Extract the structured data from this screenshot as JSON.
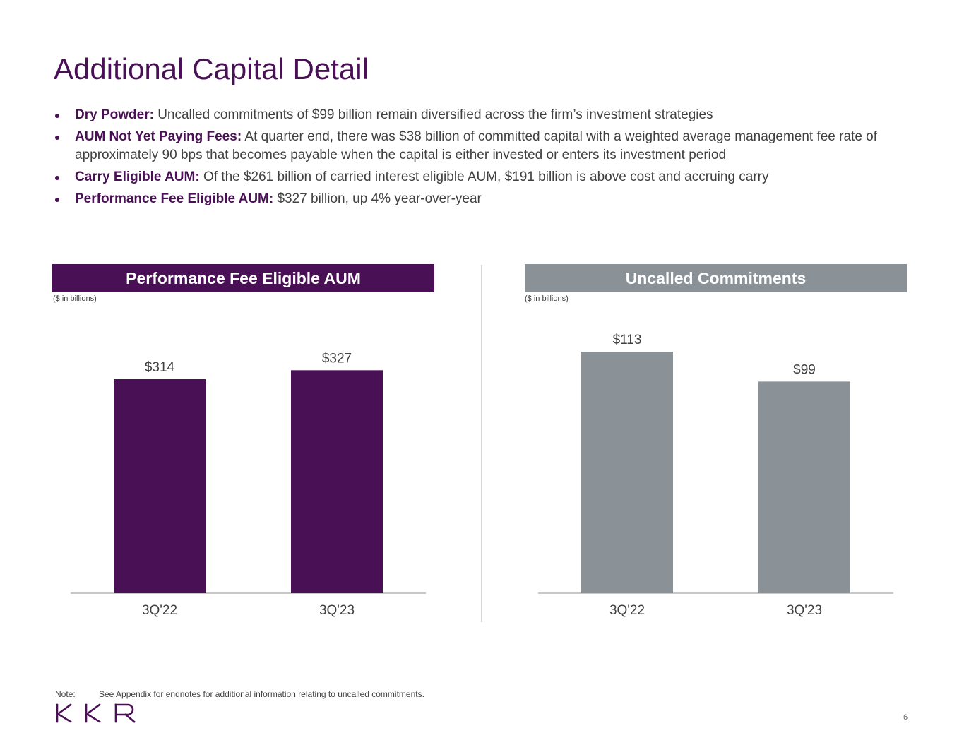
{
  "title": "Additional Capital Detail",
  "bullets": [
    {
      "label": "Dry Powder:",
      "text": "Uncalled commitments of $99 billion remain diversified across the firm’s investment strategies"
    },
    {
      "label": "AUM Not Yet Paying Fees:",
      "text": "At quarter end, there was $38 billion of committed capital with a weighted average management fee rate of approximately 90 bps that becomes payable when the capital is either invested or enters its investment period"
    },
    {
      "label": "Carry Eligible AUM:",
      "text": "Of the $261 billion of carried interest eligible AUM, $191 billion is above cost and accruing carry"
    },
    {
      "label": "Performance Fee Eligible AUM:",
      "text": "$327 billion, up 4% year-over-year"
    }
  ],
  "colors": {
    "purple": "#4a1055",
    "gray": "#8a9298",
    "title": "#4a1055",
    "text": "#404040"
  },
  "chart_data": [
    {
      "type": "bar",
      "title": "Performance Fee Eligible AUM",
      "units": "($ in billions)",
      "categories": [
        "3Q'22",
        "3Q'23"
      ],
      "values": [
        314,
        327
      ],
      "labels": [
        "$314",
        "$327"
      ],
      "color": "#4a1055"
    },
    {
      "type": "bar",
      "title": "Uncalled Commitments",
      "units": "($ in billions)",
      "categories": [
        "3Q'22",
        "3Q'23"
      ],
      "values": [
        113,
        99
      ],
      "labels": [
        "$113",
        "$99"
      ],
      "color": "#8a9298"
    }
  ],
  "footnote": {
    "label": "Note:",
    "text": "See Appendix for endnotes for additional information relating to uncalled commitments."
  },
  "logo": "KKR",
  "page_number": "6"
}
